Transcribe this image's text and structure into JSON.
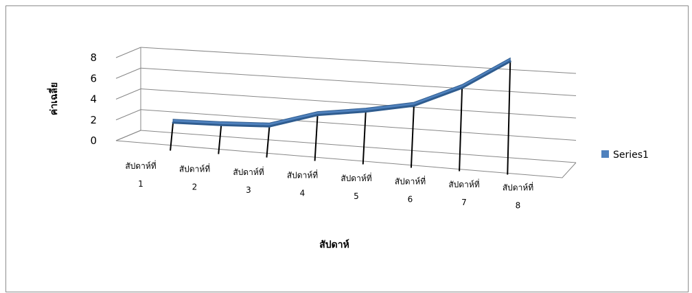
{
  "chart_data": {
    "type": "line",
    "title": "",
    "categories": [
      [
        "สัปดาห์ที่",
        "1"
      ],
      [
        "สัปดาห์ที่",
        "2"
      ],
      [
        "สัปดาห์ที่",
        "3"
      ],
      [
        "สัปดาห์ที่",
        "4"
      ],
      [
        "สัปดาห์ที่",
        "5"
      ],
      [
        "สัปดาห์ที่",
        "6"
      ],
      [
        "สัปดาห์ที่",
        "7"
      ],
      [
        "สัปดาห์ที่",
        "8"
      ]
    ],
    "series": [
      {
        "name": "Series1",
        "values": [
          1,
          0.8,
          0.7,
          1.7,
          2.0,
          2.5,
          4.0,
          6.2
        ]
      }
    ],
    "yticks": [
      "0",
      "2",
      "4",
      "6",
      "8"
    ],
    "ylim": [
      0,
      8
    ],
    "xlabel": "สัปดาห์",
    "ylabel": "ค่าเฉลี่ย",
    "grid": true,
    "legend_position": "right",
    "colors": {
      "series": "#2f5c8f",
      "series_fill": "#4f81bd",
      "grid": "#868686",
      "drop_line": "#000000"
    }
  }
}
